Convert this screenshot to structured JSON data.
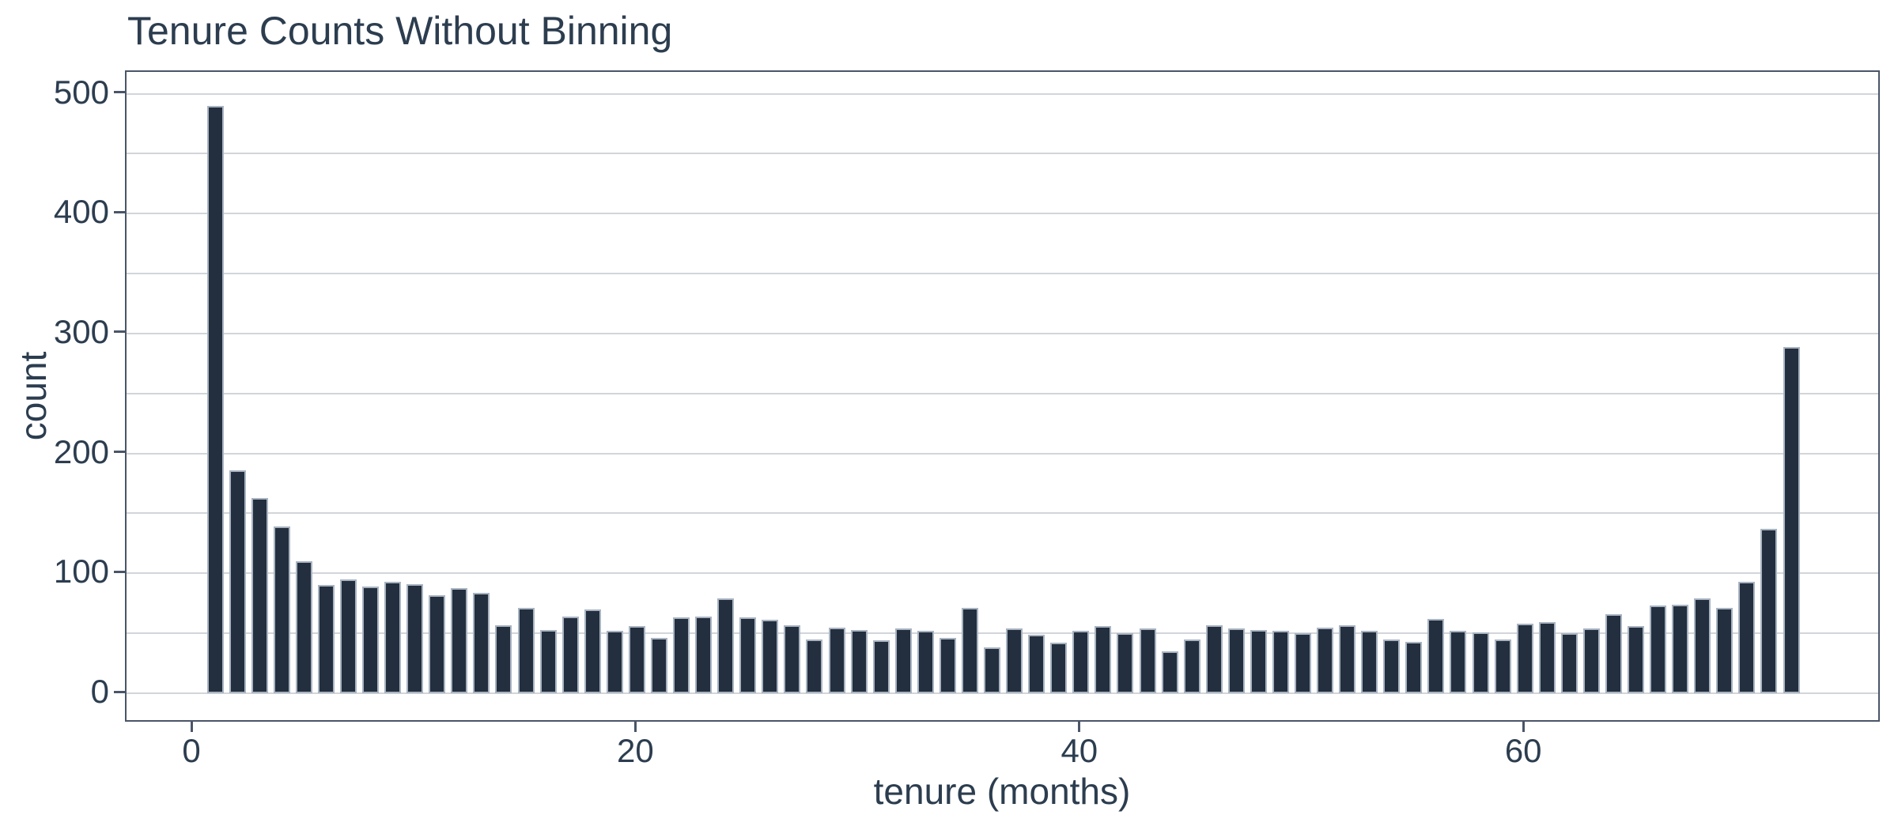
{
  "chart_data": {
    "type": "bar",
    "title": "Tenure Counts Without Binning",
    "xlabel": "tenure (months)",
    "ylabel": "count",
    "x_ticks": [
      0,
      20,
      40,
      60
    ],
    "y_ticks": [
      0,
      100,
      200,
      300,
      400,
      500
    ],
    "grid_step": 50,
    "grid_max": 500,
    "xlim": [
      -3,
      76
    ],
    "ylim": [
      -25,
      518
    ],
    "legend": null,
    "grid": true,
    "bar_color": "#232f3e",
    "bar_edge_color": "#a9b4c2",
    "spine_color": "#4a5568",
    "grid_color": "#d2d5d9",
    "text_color": "#2c3d4f",
    "x": [
      1,
      2,
      3,
      4,
      5,
      6,
      7,
      8,
      9,
      10,
      11,
      12,
      13,
      14,
      15,
      16,
      17,
      18,
      19,
      20,
      21,
      22,
      23,
      24,
      25,
      26,
      27,
      28,
      29,
      30,
      31,
      32,
      33,
      34,
      35,
      36,
      37,
      38,
      39,
      40,
      41,
      42,
      43,
      44,
      45,
      46,
      47,
      48,
      49,
      50,
      51,
      52,
      53,
      54,
      55,
      56,
      57,
      58,
      59,
      60,
      61,
      62,
      63,
      64,
      65,
      66,
      67,
      68,
      69,
      70,
      71,
      72
    ],
    "values": [
      490,
      186,
      163,
      139,
      110,
      90,
      95,
      89,
      93,
      91,
      82,
      88,
      84,
      57,
      71,
      53,
      64,
      70,
      52,
      56,
      46,
      63,
      64,
      79,
      63,
      61,
      57,
      45,
      55,
      53,
      44,
      54,
      52,
      46,
      71,
      38,
      54,
      49,
      42,
      52,
      56,
      50,
      54,
      35,
      45,
      57,
      54,
      53,
      52,
      50,
      55,
      57,
      52,
      45,
      43,
      62,
      52,
      51,
      45,
      58,
      59,
      50,
      54,
      66,
      56,
      73,
      74,
      79,
      71,
      93,
      137,
      289
    ]
  }
}
